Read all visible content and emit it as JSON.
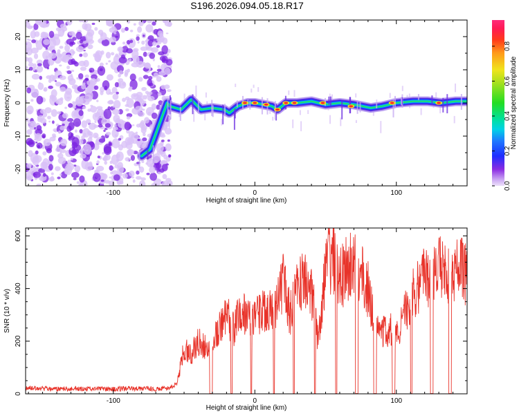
{
  "title": "S196.2026.094.05.18.R17",
  "colors": {
    "signal_line": "#e8332a",
    "axis": "#000000",
    "noise_purple": "#7a22e0",
    "noise_lilac": "#d9c2f7"
  },
  "chart_data": [
    {
      "type": "heatmap",
      "title": "",
      "xlabel": "Height of straight line (km)",
      "ylabel": "Frequency (Hz)",
      "xlim": [
        -162,
        150
      ],
      "ylim": [
        -25,
        25
      ],
      "xticks": [
        -100,
        0,
        100
      ],
      "xtick_labels": [
        "-100",
        "0",
        "100"
      ],
      "yticks": [
        -20,
        -10,
        0,
        10,
        20
      ],
      "ytick_labels": [
        "-20",
        "-10",
        "0",
        "10",
        "20"
      ],
      "noise_region_end_km": -63,
      "ridge_frequency_hz": [
        {
          "x": -80,
          "y": -16
        },
        {
          "x": -74,
          "y": -14
        },
        {
          "x": -62,
          "y": 0
        },
        {
          "x": -60,
          "y": -1
        },
        {
          "x": -52,
          "y": -2
        },
        {
          "x": -45,
          "y": 1
        },
        {
          "x": -38,
          "y": -2
        },
        {
          "x": -30,
          "y": -1.5
        },
        {
          "x": -22,
          "y": -2
        },
        {
          "x": -18,
          "y": -3
        },
        {
          "x": -12,
          "y": -1
        },
        {
          "x": -5,
          "y": 0
        },
        {
          "x": 0,
          "y": 0
        },
        {
          "x": 6,
          "y": -0.5
        },
        {
          "x": 12,
          "y": -1
        },
        {
          "x": 16,
          "y": -2
        },
        {
          "x": 22,
          "y": 0
        },
        {
          "x": 30,
          "y": 0
        },
        {
          "x": 40,
          "y": 0.5
        },
        {
          "x": 50,
          "y": -0.5
        },
        {
          "x": 60,
          "y": 0
        },
        {
          "x": 70,
          "y": -0.5
        },
        {
          "x": 82,
          "y": -1.5
        },
        {
          "x": 90,
          "y": -1
        },
        {
          "x": 100,
          "y": 0
        },
        {
          "x": 112,
          "y": 0.5
        },
        {
          "x": 122,
          "y": 0.5
        },
        {
          "x": 132,
          "y": 0
        },
        {
          "x": 142,
          "y": 0.5
        },
        {
          "x": 150,
          "y": 0.5
        }
      ],
      "peaks": [
        {
          "x": -7,
          "y": 0
        },
        {
          "x": 0,
          "y": 0
        },
        {
          "x": 8,
          "y": -0.5
        },
        {
          "x": 16,
          "y": -2
        },
        {
          "x": 22,
          "y": 0
        },
        {
          "x": 28,
          "y": 0
        },
        {
          "x": 48,
          "y": 0
        },
        {
          "x": 68,
          "y": -1
        },
        {
          "x": 97,
          "y": 0
        },
        {
          "x": 130,
          "y": 0
        }
      ],
      "colorbar": {
        "label": "Normalized spectral amplitude",
        "range": [
          0,
          0.95
        ],
        "ticks": [
          0.0,
          0.2,
          0.4,
          0.6,
          0.8
        ],
        "tick_labels": [
          "0.0",
          "0.2",
          "0.4",
          "0.6",
          "0.8"
        ]
      }
    },
    {
      "type": "line",
      "title": "",
      "xlabel": "Height of straight line (km)",
      "ylabel": "SNR (10 * v/v)",
      "xlim": [
        -162,
        150
      ],
      "ylim": [
        0,
        630
      ],
      "xticks": [
        -100,
        0,
        100
      ],
      "xtick_labels": [
        "-100",
        "0",
        "100"
      ],
      "yticks": [
        0,
        200,
        400,
        600
      ],
      "ytick_labels": [
        "0",
        "200",
        "400",
        "600"
      ],
      "series": [
        {
          "name": "SNR",
          "envelope": [
            [
              -162,
              22
            ],
            [
              -150,
              20
            ],
            [
              -140,
              18
            ],
            [
              -130,
              20
            ],
            [
              -120,
              18
            ],
            [
              -110,
              20
            ],
            [
              -100,
              18
            ],
            [
              -90,
              20
            ],
            [
              -80,
              20
            ],
            [
              -70,
              18
            ],
            [
              -60,
              22
            ],
            [
              -55,
              40
            ],
            [
              -50,
              170
            ],
            [
              -45,
              150
            ],
            [
              -40,
              200
            ],
            [
              -35,
              180
            ],
            [
              -30,
              190
            ],
            [
              -25,
              250
            ],
            [
              -20,
              300
            ],
            [
              -15,
              240
            ],
            [
              -10,
              320
            ],
            [
              -5,
              300
            ],
            [
              0,
              300
            ],
            [
              5,
              310
            ],
            [
              10,
              320
            ],
            [
              15,
              340
            ],
            [
              20,
              420
            ],
            [
              25,
              300
            ],
            [
              30,
              400
            ],
            [
              35,
              440
            ],
            [
              40,
              390
            ],
            [
              45,
              200
            ],
            [
              50,
              460
            ],
            [
              55,
              520
            ],
            [
              60,
              440
            ],
            [
              65,
              470
            ],
            [
              70,
              500
            ],
            [
              75,
              460
            ],
            [
              80,
              400
            ],
            [
              85,
              260
            ],
            [
              90,
              230
            ],
            [
              95,
              250
            ],
            [
              100,
              230
            ],
            [
              105,
              290
            ],
            [
              110,
              360
            ],
            [
              115,
              400
            ],
            [
              120,
              440
            ],
            [
              125,
              460
            ],
            [
              130,
              470
            ],
            [
              135,
              480
            ],
            [
              140,
              460
            ],
            [
              145,
              470
            ],
            [
              150,
              460
            ]
          ],
          "dropouts": [
            [
              -32,
              -30
            ],
            [
              -17,
              -16
            ],
            [
              -3,
              -2
            ],
            [
              13,
              14
            ],
            [
              27,
              28
            ],
            [
              42,
              43
            ],
            [
              57,
              58
            ],
            [
              71,
              73
            ],
            [
              84,
              86
            ],
            [
              97,
              99
            ],
            [
              110,
              111
            ],
            [
              124,
              126
            ],
            [
              137,
              139
            ]
          ],
          "peak_value": 630,
          "peak_x": 52
        }
      ]
    }
  ]
}
